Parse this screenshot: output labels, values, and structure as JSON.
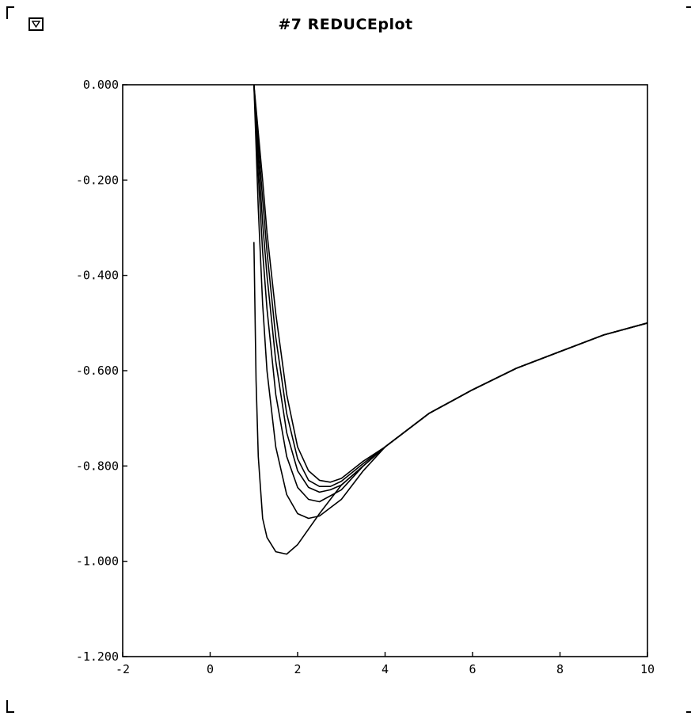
{
  "window": {
    "title": "#7 REDUCEplot",
    "menu_icon": "triangle-down-icon"
  },
  "chart_data": {
    "type": "line",
    "title": "",
    "xlabel": "",
    "ylabel": "",
    "xlim": [
      -2,
      10
    ],
    "ylim": [
      -1.2,
      0.0
    ],
    "x_ticks": [
      -2,
      0,
      2,
      4,
      6,
      8,
      10
    ],
    "x_tick_labels": [
      "-2",
      "0",
      "2",
      "4",
      "6",
      "8",
      "10"
    ],
    "y_ticks": [
      0.0,
      -0.2,
      -0.4,
      -0.6,
      -0.8,
      -1.0,
      -1.2
    ],
    "y_tick_labels": [
      "0.000",
      "-0.200",
      "-0.400",
      "-0.600",
      "-0.800",
      "-1.000",
      "-1.200"
    ],
    "grid": false,
    "legend": "none",
    "series": [
      {
        "x": [
          1.0,
          1.05,
          1.1,
          1.2,
          1.3,
          1.5,
          1.75,
          2.0,
          2.5,
          3.0,
          4.0,
          5.0,
          6.0,
          7.0,
          8.0,
          9.0,
          10.0
        ],
        "y": [
          -0.33,
          -0.62,
          -0.78,
          -0.91,
          -0.95,
          -0.98,
          -0.985,
          -0.965,
          -0.9,
          -0.84,
          -0.76,
          -0.69,
          -0.64,
          -0.595,
          -0.56,
          -0.525,
          -0.5
        ]
      },
      {
        "x": [
          1.0,
          1.1,
          1.2,
          1.3,
          1.5,
          1.75,
          2.0,
          2.25,
          2.5,
          3.0,
          3.5,
          4.0,
          5.0,
          6.0,
          7.0,
          8.0,
          9.0,
          10.0
        ],
        "y": [
          0.0,
          -0.26,
          -0.46,
          -0.6,
          -0.76,
          -0.86,
          -0.9,
          -0.91,
          -0.905,
          -0.87,
          -0.81,
          -0.76,
          -0.69,
          -0.64,
          -0.595,
          -0.56,
          -0.525,
          -0.5
        ]
      },
      {
        "x": [
          1.0,
          1.1,
          1.2,
          1.3,
          1.5,
          1.75,
          2.0,
          2.25,
          2.5,
          3.0,
          3.5,
          4.0,
          5.0,
          6.0,
          7.0,
          8.0,
          9.0,
          10.0
        ],
        "y": [
          0.0,
          -0.19,
          -0.35,
          -0.47,
          -0.65,
          -0.78,
          -0.845,
          -0.87,
          -0.875,
          -0.85,
          -0.8,
          -0.76,
          -0.69,
          -0.64,
          -0.595,
          -0.56,
          -0.525,
          -0.5
        ]
      },
      {
        "x": [
          1.0,
          1.1,
          1.2,
          1.3,
          1.5,
          1.75,
          2.0,
          2.25,
          2.5,
          2.75,
          3.0,
          3.5,
          4.0,
          5.0,
          6.0,
          7.0,
          8.0,
          9.0,
          10.0
        ],
        "y": [
          0.0,
          -0.15,
          -0.29,
          -0.4,
          -0.58,
          -0.73,
          -0.81,
          -0.845,
          -0.855,
          -0.85,
          -0.84,
          -0.8,
          -0.76,
          -0.69,
          -0.64,
          -0.595,
          -0.56,
          -0.525,
          -0.5
        ]
      },
      {
        "x": [
          1.0,
          1.1,
          1.2,
          1.3,
          1.5,
          1.75,
          2.0,
          2.25,
          2.5,
          2.75,
          3.0,
          3.5,
          4.0,
          5.0,
          6.0,
          7.0,
          8.0,
          9.0,
          10.0
        ],
        "y": [
          0.0,
          -0.12,
          -0.24,
          -0.35,
          -0.53,
          -0.69,
          -0.785,
          -0.83,
          -0.843,
          -0.843,
          -0.832,
          -0.795,
          -0.76,
          -0.69,
          -0.64,
          -0.595,
          -0.56,
          -0.525,
          -0.5
        ]
      },
      {
        "x": [
          1.0,
          1.1,
          1.2,
          1.3,
          1.5,
          1.75,
          2.0,
          2.25,
          2.5,
          2.75,
          3.0,
          3.5,
          4.0,
          5.0,
          6.0,
          7.0,
          8.0,
          9.0,
          10.0
        ],
        "y": [
          0.0,
          -0.1,
          -0.2,
          -0.31,
          -0.48,
          -0.65,
          -0.76,
          -0.81,
          -0.83,
          -0.834,
          -0.826,
          -0.79,
          -0.76,
          -0.69,
          -0.64,
          -0.595,
          -0.56,
          -0.525,
          -0.5
        ]
      }
    ]
  }
}
